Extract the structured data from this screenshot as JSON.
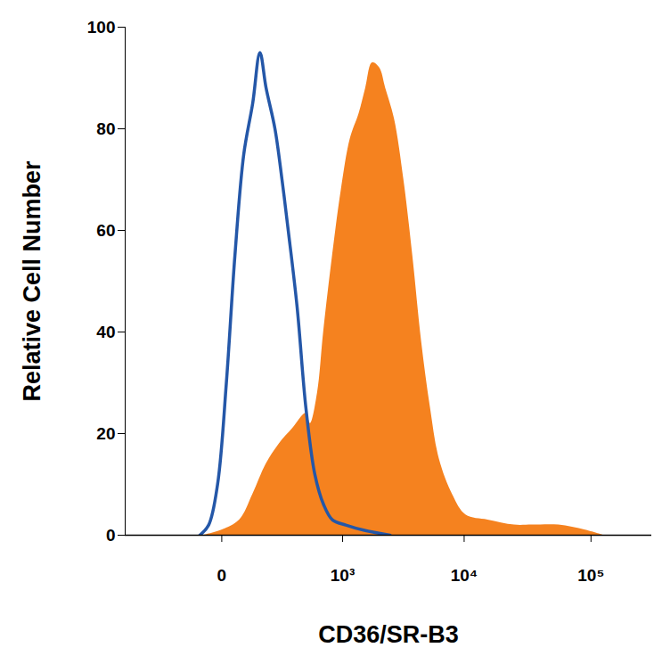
{
  "chart_data": {
    "type": "line",
    "x_label": "CD36/SR-B3",
    "y_label": "Relative Cell Number",
    "log": "x",
    "xlim": [
      -600,
      300000
    ],
    "xticks": [
      0,
      {
        "value": 1000,
        "label": "10³"
      },
      {
        "value": 10000,
        "label": "10⁴"
      },
      {
        "value": 100000,
        "label": "10⁵"
      }
    ],
    "ylim": [
      0,
      100
    ],
    "yticks": [
      0,
      20,
      40,
      60,
      80,
      100
    ],
    "series": [
      {
        "type": "area",
        "color": "#f5821f",
        "x": [
          -48,
          0,
          48,
          95,
          156,
          232,
          330,
          454,
          502,
          589,
          673,
          812,
          974,
          1166,
          1390,
          1582,
          1803,
          2070,
          2324,
          2743,
          3277,
          3874,
          4572,
          5385,
          6337,
          8090,
          10325,
          15456,
          25020,
          34544,
          55880,
          90424,
          124587
        ],
        "values": [
          0,
          1,
          3,
          8,
          14,
          18,
          21,
          24,
          22,
          28,
          40,
          55,
          68,
          78,
          83,
          88,
          93,
          92,
          88,
          82,
          70,
          55,
          38,
          25,
          15,
          8,
          4,
          3,
          2,
          2,
          2,
          1,
          0
        ]
      },
      {
        "type": "line",
        "color": "#2457a8",
        "x": [
          -62,
          -34,
          -10,
          11,
          34,
          62,
          95,
          126,
          156,
          205,
          250,
          295,
          368,
          454,
          555,
          673,
          812,
          1066,
          1515,
          2530
        ],
        "values": [
          0,
          2,
          10,
          30,
          55,
          75,
          85,
          95,
          88,
          80,
          70,
          60,
          45,
          25,
          12,
          6,
          3,
          2,
          1,
          0
        ]
      }
    ]
  }
}
